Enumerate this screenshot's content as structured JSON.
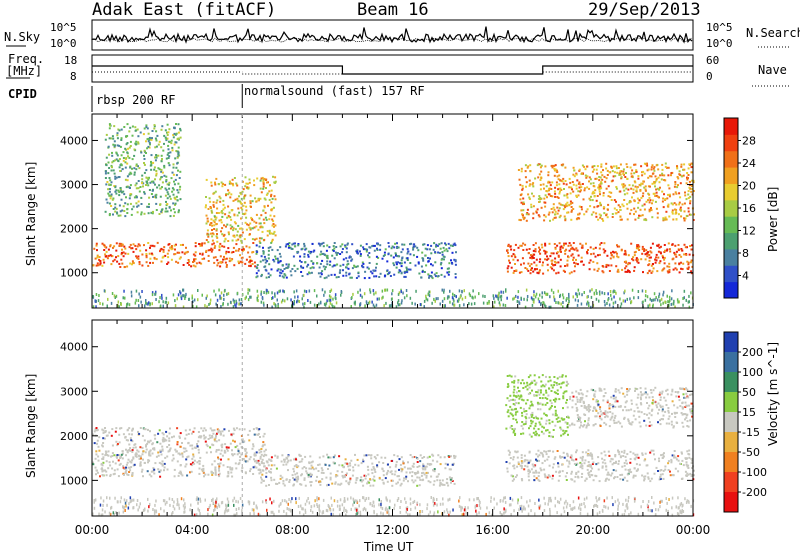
{
  "header": {
    "radar": "Adak East (fitACF)",
    "beam": "Beam 16",
    "date": "29/Sep/2013"
  },
  "noise_panel": {
    "left_label": "N.Sky",
    "right_label": "N.Search",
    "left_ticks": [
      "10^5",
      "10^0"
    ],
    "right_ticks": [
      "10^5",
      "10^0"
    ]
  },
  "freq_panel": {
    "left_label": "Freq.",
    "left_unit": "[MHz]",
    "left_ticks": [
      "18",
      "8"
    ],
    "right_label": "Nave",
    "right_ticks": [
      "60",
      "0"
    ]
  },
  "cpid": {
    "label": "CPID",
    "segments": [
      {
        "text": "rbsp 200 RF",
        "start_hour": 0,
        "end_hour": 6
      },
      {
        "text": "normalsound (fast) 157 RF",
        "start_hour": 6,
        "end_hour": 24
      }
    ]
  },
  "chart_data": [
    {
      "type": "heatmap",
      "name": "power",
      "ylabel": "Slant Range [km]",
      "xlabel": "Time UT",
      "x_ticks": [
        "00:00",
        "04:00",
        "08:00",
        "12:00",
        "16:00",
        "20:00",
        "00:00"
      ],
      "x_range_hours": [
        0,
        24
      ],
      "y_ticks": [
        1000,
        2000,
        3000,
        4000
      ],
      "ylim": [
        200,
        4600
      ],
      "colorbar": {
        "label": "Power [dB]",
        "ticks": [
          "4",
          "8",
          "12",
          "16",
          "20",
          "24",
          "28"
        ],
        "range": [
          0,
          32
        ],
        "colors": [
          "#1428d8",
          "#3050c8",
          "#4a80a0",
          "#4ca070",
          "#66bb55",
          "#a8cc44",
          "#e8cc30",
          "#f0a020",
          "#f07018",
          "#f04010",
          "#e81808"
        ]
      },
      "bands": [
        {
          "hours": [
            0,
            6.5
          ],
          "range_km": [
            1150,
            1700
          ],
          "power": 26
        },
        {
          "hours": [
            4.5,
            7.3
          ],
          "range_km": [
            1700,
            3200
          ],
          "power": 20
        },
        {
          "hours": [
            0.5,
            3.5
          ],
          "range_km": [
            2300,
            4400
          ],
          "power": 12
        },
        {
          "hours": [
            6.5,
            14.5
          ],
          "range_km": [
            900,
            1700
          ],
          "power": 6
        },
        {
          "hours": [
            16.5,
            24
          ],
          "range_km": [
            1000,
            1700
          ],
          "power": 28
        },
        {
          "hours": [
            17,
            24
          ],
          "range_km": [
            2200,
            3500
          ],
          "power": 22
        }
      ]
    },
    {
      "type": "heatmap",
      "name": "velocity",
      "ylabel": "Slant Range [km]",
      "xlabel": "Time UT",
      "x_ticks": [
        "00:00",
        "04:00",
        "08:00",
        "12:00",
        "16:00",
        "20:00",
        "00:00"
      ],
      "x_range_hours": [
        0,
        24
      ],
      "y_ticks": [
        1000,
        2000,
        3000,
        4000
      ],
      "ylim": [
        200,
        4600
      ],
      "colorbar": {
        "label": "Velocity [m s^-1]",
        "ticks": [
          "200",
          "100",
          "50",
          "15",
          "-15",
          "-50",
          "-100",
          "-200"
        ],
        "colors": [
          "#2040b0",
          "#3a70a0",
          "#3a9060",
          "#88cc40",
          "#c8c8c0",
          "#e8b040",
          "#f08020",
          "#f04020",
          "#e81010"
        ]
      },
      "bands": [
        {
          "hours": [
            0,
            7
          ],
          "range_km": [
            1100,
            2200
          ],
          "velocity": 0
        },
        {
          "hours": [
            6.5,
            14.5
          ],
          "range_km": [
            900,
            1600
          ],
          "velocity": 0
        },
        {
          "hours": [
            16.5,
            24
          ],
          "range_km": [
            1000,
            1700
          ],
          "velocity": 0
        },
        {
          "hours": [
            16.5,
            19
          ],
          "range_km": [
            2000,
            3400
          ],
          "velocity": 30
        },
        {
          "hours": [
            19,
            24
          ],
          "range_km": [
            2200,
            3100
          ],
          "velocity": 0
        }
      ]
    }
  ],
  "colors": {
    "background": "#ffffff",
    "ground_scatter": "#c8c8c0"
  }
}
